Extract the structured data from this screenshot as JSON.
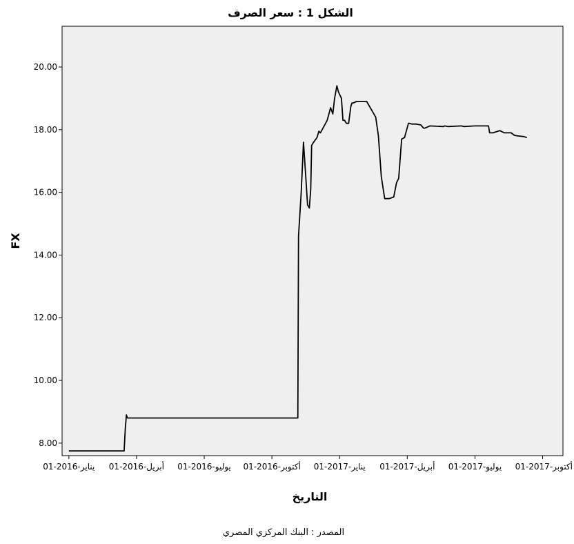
{
  "chart_data": {
    "type": "line",
    "title": "الشكل 1 : سعر الصرف",
    "xlabel": "التاريخ",
    "ylabel": "FX",
    "source": "المصدر : البنك المركزي المصري",
    "ylim": [
      7.6,
      21.3
    ],
    "yticks": [
      8.0,
      10.0,
      12.0,
      14.0,
      16.0,
      18.0,
      20.0
    ],
    "ytick_labels": [
      "8.00",
      "10.00",
      "12.00",
      "14.00",
      "16.00",
      "18.00",
      "20.00"
    ],
    "xlim": [
      -0.3,
      21.9
    ],
    "xticks": [
      0,
      3,
      6,
      9,
      12,
      15,
      18,
      21
    ],
    "xtick_labels": [
      "01-يناير-2016",
      "01-أبريل-2016",
      "01-يوليو-2016",
      "01-أكتوبر-2016",
      "01-يناير-2017",
      "01-أبريل-2017",
      "01-يوليو-2017",
      "01-أكتوبر-2017"
    ],
    "grid": false,
    "background": "#efefef",
    "line_color": "#000000",
    "series": [
      {
        "x": [
          0.0,
          2.45,
          2.5,
          2.55,
          2.6,
          10.15,
          10.18,
          10.3,
          10.4,
          10.5,
          10.58,
          10.66,
          10.72,
          10.76,
          10.85,
          11.0,
          11.08,
          11.15,
          11.3,
          11.45,
          11.6,
          11.7,
          11.78,
          11.88,
          11.95,
          12.08,
          12.15,
          12.22,
          12.3,
          12.4,
          12.5,
          12.55,
          12.6,
          12.75,
          12.85,
          13.0,
          13.2,
          13.6,
          13.72,
          13.85,
          14.0,
          14.2,
          14.4,
          14.52,
          14.62,
          14.75,
          14.88,
          15.05,
          15.1,
          15.2,
          15.4,
          15.6,
          15.72,
          15.78,
          16.0,
          16.6,
          16.65,
          16.8,
          17.4,
          17.5,
          18.0,
          18.3,
          18.6,
          18.65,
          18.8,
          19.1,
          19.3,
          19.6,
          19.75,
          19.9,
          20.15,
          20.3
        ],
        "y": [
          7.75,
          7.75,
          8.45,
          8.9,
          8.8,
          8.8,
          14.6,
          16.0,
          17.6,
          16.5,
          15.6,
          15.5,
          16.1,
          17.5,
          17.6,
          17.75,
          17.95,
          17.9,
          18.1,
          18.3,
          18.7,
          18.5,
          19.0,
          19.4,
          19.2,
          19.0,
          18.3,
          18.3,
          18.2,
          18.2,
          18.75,
          18.85,
          18.85,
          18.9,
          18.9,
          18.9,
          18.9,
          18.4,
          17.8,
          16.5,
          15.8,
          15.8,
          15.85,
          16.3,
          16.45,
          17.7,
          17.75,
          18.2,
          18.2,
          18.18,
          18.18,
          18.15,
          18.05,
          18.05,
          18.12,
          18.1,
          18.12,
          18.1,
          18.12,
          18.1,
          18.12,
          18.12,
          18.12,
          17.9,
          17.9,
          17.97,
          17.9,
          17.9,
          17.82,
          17.8,
          17.78,
          17.75
        ]
      }
    ]
  }
}
